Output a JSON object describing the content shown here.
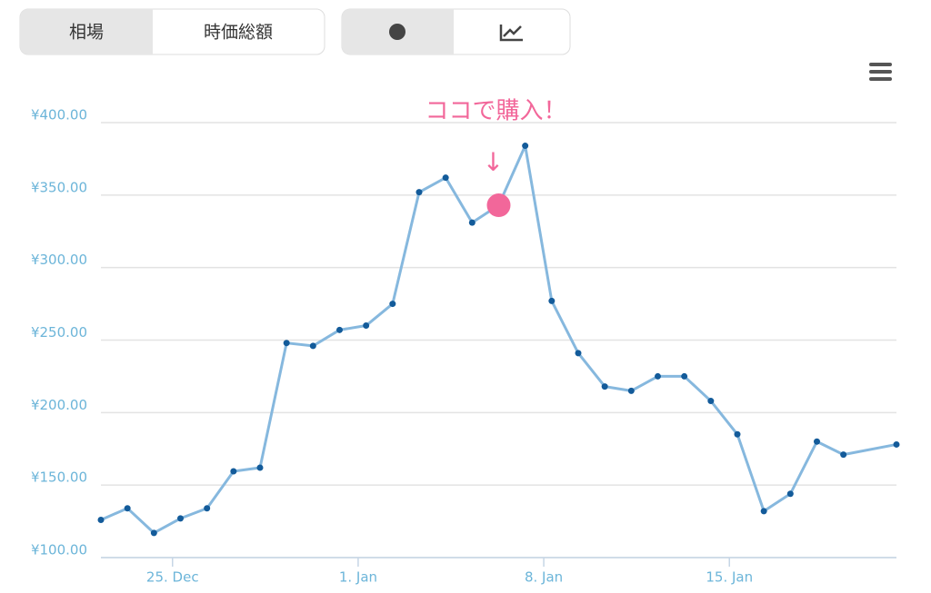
{
  "ui": {
    "tabs": [
      "相場",
      "時価総額"
    ]
  },
  "chart_data": {
    "type": "line",
    "x": [
      "22. Dec",
      "23. Dec",
      "24. Dec",
      "25. Dec",
      "26. Dec",
      "27. Dec",
      "28. Dec",
      "29. Dec",
      "30. Dec",
      "31. Dec",
      "1. Jan",
      "2. Jan",
      "3. Jan",
      "4. Jan",
      "5. Jan",
      "6. Jan",
      "7. Jan",
      "8. Jan",
      "9. Jan",
      "10. Jan",
      "11. Jan",
      "12. Jan",
      "13. Jan",
      "14. Jan",
      "15. Jan",
      "16. Jan",
      "17. Jan",
      "18. Jan",
      "19. Jan",
      "21. Jan"
    ],
    "series": [
      {
        "color": "#86b8de",
        "marker_color": "#135b9a",
        "values": [
          126,
          134,
          117,
          127,
          134,
          159.5,
          162,
          248,
          246,
          257,
          260,
          275,
          352,
          362,
          331,
          343,
          384,
          277,
          241,
          218,
          215,
          225,
          225,
          208,
          185,
          132,
          144,
          180,
          171,
          178
        ]
      }
    ],
    "xticks": [
      "25. Dec",
      "1. Jan",
      "8. Jan",
      "15. Jan"
    ],
    "ylim": [
      100,
      400
    ],
    "yticks": [
      {
        "value": 100,
        "label": "¥100.00"
      },
      {
        "value": 150,
        "label": "¥150.00"
      },
      {
        "value": 200,
        "label": "¥200.00"
      },
      {
        "value": 250,
        "label": "¥250.00"
      },
      {
        "value": 300,
        "label": "¥300.00"
      },
      {
        "value": 350,
        "label": "¥350.00"
      },
      {
        "value": 400,
        "label": "¥400.00"
      }
    ],
    "grid": true,
    "annotation": {
      "text": "ココで購入！",
      "arrow": "↓",
      "x": "6. Jan",
      "color": "#f2679a"
    }
  }
}
